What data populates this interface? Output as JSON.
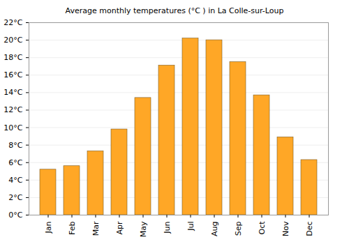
{
  "chart_data": {
    "type": "bar",
    "title": "Average monthly temperatures (°C ) in La Colle-sur-Loup",
    "categories": [
      "Jan",
      "Feb",
      "Mar",
      "Apr",
      "May",
      "Jun",
      "Jul",
      "Aug",
      "Sep",
      "Oct",
      "Nov",
      "Dec"
    ],
    "values": [
      5.2,
      5.6,
      7.3,
      9.8,
      13.4,
      17.1,
      20.2,
      20.0,
      17.5,
      13.7,
      8.9,
      6.3
    ],
    "color": "#ffa726",
    "ylim": [
      0,
      22
    ],
    "yticks": [
      {
        "value": 0,
        "label": "0°C"
      },
      {
        "value": 2,
        "label": "2°C"
      },
      {
        "value": 4,
        "label": "4°C"
      },
      {
        "value": 6,
        "label": "6°C"
      },
      {
        "value": 8,
        "label": "8°C"
      },
      {
        "value": 10,
        "label": "10°C"
      },
      {
        "value": 12,
        "label": "12°C"
      },
      {
        "value": 14,
        "label": "14°C"
      },
      {
        "value": 16,
        "label": "16°C"
      },
      {
        "value": 18,
        "label": "18°C"
      },
      {
        "value": 20,
        "label": "20°C"
      },
      {
        "value": 22,
        "label": "22°C"
      }
    ],
    "grid": true
  }
}
